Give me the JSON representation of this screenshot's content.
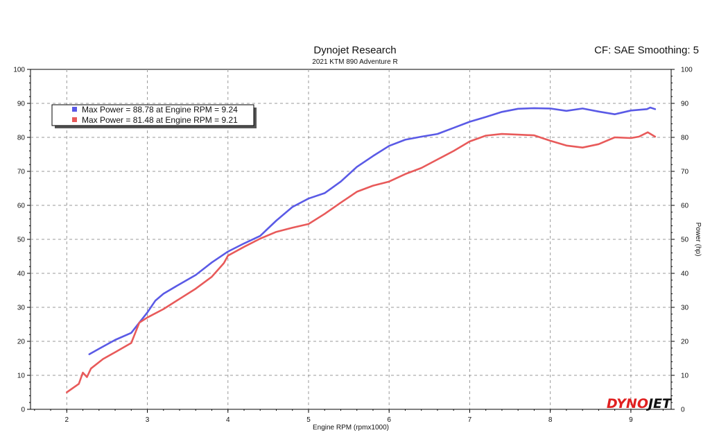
{
  "header": {
    "title": "Dynojet Research",
    "subtitle": "2021 KTM 890 Adventure R",
    "cf_text": "CF: SAE Smoothing: 5"
  },
  "brand": {
    "left": "DYNO",
    "right": "JET",
    "color_left": "#e02020",
    "color_right": "#111111"
  },
  "legend": {
    "placement": "top-left",
    "entries": [
      {
        "text": "Max Power = 88.78 at Engine RPM = 9.24",
        "color": "#5a5ae6"
      },
      {
        "text": "Max Power = 81.48 at Engine RPM = 9.21",
        "color": "#e85a5a"
      }
    ]
  },
  "chart_data": {
    "type": "line",
    "title": "Dynojet Research",
    "subtitle": "2021 KTM 890 Adventure R",
    "xlabel": "Engine RPM (rpmx1000)",
    "ylabel": "Power (hp)",
    "xlim": [
      1.55,
      9.5
    ],
    "ylim": [
      0,
      100
    ],
    "xticks": [
      2,
      3,
      4,
      5,
      6,
      7,
      8,
      9
    ],
    "yticks": [
      0,
      10,
      20,
      30,
      40,
      50,
      60,
      70,
      80,
      90,
      100
    ],
    "grid": true,
    "series": [
      {
        "color": "#5a5ae6",
        "points": [
          [
            2.28,
            16.2
          ],
          [
            2.4,
            17.8
          ],
          [
            2.6,
            20.4
          ],
          [
            2.8,
            22.5
          ],
          [
            2.9,
            25.5
          ],
          [
            3.0,
            28.5
          ],
          [
            3.1,
            32.0
          ],
          [
            3.2,
            34.0
          ],
          [
            3.4,
            36.8
          ],
          [
            3.6,
            39.5
          ],
          [
            3.8,
            43.2
          ],
          [
            4.0,
            46.4
          ],
          [
            4.2,
            48.8
          ],
          [
            4.4,
            51.0
          ],
          [
            4.6,
            55.5
          ],
          [
            4.8,
            59.5
          ],
          [
            5.0,
            62.0
          ],
          [
            5.2,
            63.6
          ],
          [
            5.4,
            67.0
          ],
          [
            5.6,
            71.3
          ],
          [
            5.8,
            74.5
          ],
          [
            6.0,
            77.5
          ],
          [
            6.2,
            79.3
          ],
          [
            6.4,
            80.2
          ],
          [
            6.6,
            81.0
          ],
          [
            6.8,
            82.8
          ],
          [
            7.0,
            84.6
          ],
          [
            7.2,
            86.0
          ],
          [
            7.4,
            87.5
          ],
          [
            7.6,
            88.4
          ],
          [
            7.8,
            88.6
          ],
          [
            8.0,
            88.5
          ],
          [
            8.2,
            87.8
          ],
          [
            8.4,
            88.5
          ],
          [
            8.6,
            87.6
          ],
          [
            8.8,
            86.8
          ],
          [
            9.0,
            87.9
          ],
          [
            9.1,
            88.1
          ],
          [
            9.2,
            88.3
          ],
          [
            9.24,
            88.78
          ],
          [
            9.3,
            88.3
          ]
        ]
      },
      {
        "color": "#e85a5a",
        "points": [
          [
            2.0,
            5.0
          ],
          [
            2.15,
            7.5
          ],
          [
            2.2,
            10.8
          ],
          [
            2.25,
            9.5
          ],
          [
            2.3,
            12.0
          ],
          [
            2.45,
            14.8
          ],
          [
            2.6,
            16.8
          ],
          [
            2.8,
            19.5
          ],
          [
            2.85,
            22.5
          ],
          [
            2.9,
            25.5
          ],
          [
            3.0,
            27.0
          ],
          [
            3.2,
            29.5
          ],
          [
            3.4,
            32.5
          ],
          [
            3.6,
            35.5
          ],
          [
            3.8,
            39.0
          ],
          [
            3.95,
            43.0
          ],
          [
            4.0,
            45.2
          ],
          [
            4.2,
            47.8
          ],
          [
            4.4,
            50.2
          ],
          [
            4.6,
            52.2
          ],
          [
            4.8,
            53.4
          ],
          [
            5.0,
            54.5
          ],
          [
            5.2,
            57.5
          ],
          [
            5.4,
            60.8
          ],
          [
            5.6,
            64.0
          ],
          [
            5.8,
            65.8
          ],
          [
            6.0,
            67.0
          ],
          [
            6.2,
            69.2
          ],
          [
            6.4,
            71.0
          ],
          [
            6.6,
            73.5
          ],
          [
            6.8,
            76.0
          ],
          [
            7.0,
            78.8
          ],
          [
            7.2,
            80.5
          ],
          [
            7.4,
            81.0
          ],
          [
            7.6,
            80.8
          ],
          [
            7.8,
            80.6
          ],
          [
            8.0,
            79.0
          ],
          [
            8.2,
            77.6
          ],
          [
            8.4,
            77.0
          ],
          [
            8.6,
            78.0
          ],
          [
            8.8,
            80.0
          ],
          [
            9.0,
            79.8
          ],
          [
            9.1,
            80.2
          ],
          [
            9.21,
            81.48
          ],
          [
            9.3,
            80.2
          ]
        ]
      }
    ]
  }
}
